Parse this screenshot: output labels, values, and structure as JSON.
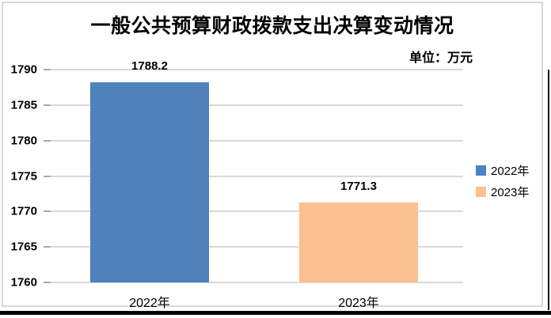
{
  "chart_data": {
    "type": "bar",
    "title": "一般公共预算财政拨款支出决算变动情况",
    "unit_label": "单位：万元",
    "categories": [
      "2022年",
      "2023年"
    ],
    "series": [
      {
        "name": "2022年",
        "value": 1788.2,
        "label": "1788.2",
        "color": "#4F81BD"
      },
      {
        "name": "2023年",
        "value": 1771.3,
        "label": "1771.3",
        "color": "#FAC090"
      }
    ],
    "ylim": [
      1760,
      1790
    ],
    "yticks": [
      1760,
      1765,
      1770,
      1775,
      1780,
      1785,
      1790
    ],
    "grid": true,
    "legend_position": "right",
    "xlabel": "",
    "ylabel": "",
    "colors": {
      "gridline": "#d9d9d9",
      "tick": "#ababab",
      "border": "#d9d9d9",
      "text": "#000000"
    }
  }
}
